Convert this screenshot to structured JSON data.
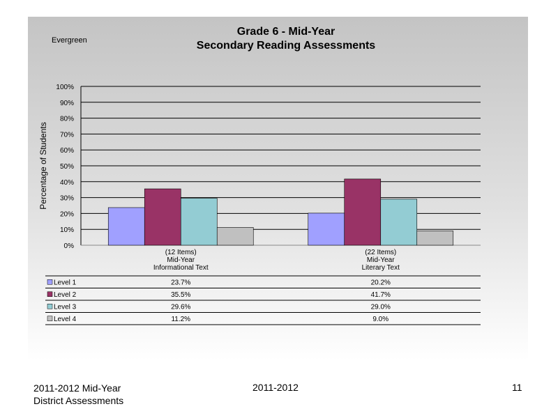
{
  "colors": {
    "level1": "#a0a0ff",
    "level2": "#993366",
    "level3": "#93ccd3",
    "level4": "#c0c0c0"
  },
  "chart_data": {
    "type": "bar",
    "school": "Evergreen",
    "title": "Grade 6 - Mid-Year",
    "subtitle": "Secondary Reading Assessments",
    "ylabel": "Percentage of Students",
    "ylim": [
      0,
      100
    ],
    "yticks": [
      "0%",
      "10%",
      "20%",
      "30%",
      "40%",
      "50%",
      "60%",
      "70%",
      "80%",
      "90%",
      "100%"
    ],
    "grid": true,
    "categories": [
      {
        "line1": "(12 Items)",
        "line2": "Mid-Year",
        "line3": "Informational Text"
      },
      {
        "line1": "(22 Items)",
        "line2": "Mid-Year",
        "line3": "Literary Text"
      }
    ],
    "series": [
      {
        "name": "Level 1",
        "values": [
          23.7,
          20.2
        ],
        "labels": [
          "23.7%",
          "20.2%"
        ]
      },
      {
        "name": "Level 2",
        "values": [
          35.5,
          41.7
        ],
        "labels": [
          "35.5%",
          "41.7%"
        ]
      },
      {
        "name": "Level 3",
        "values": [
          29.6,
          29.0
        ],
        "labels": [
          "29.6%",
          "29.0%"
        ]
      },
      {
        "name": "Level 4",
        "values": [
          11.2,
          9.0
        ],
        "labels": [
          "11.2%",
          "9.0%"
        ]
      }
    ]
  },
  "footer": {
    "left_line1": "2011-2012  Mid-Year",
    "left_line2": "District Assessments",
    "center": "2011-2012",
    "page": "11"
  }
}
